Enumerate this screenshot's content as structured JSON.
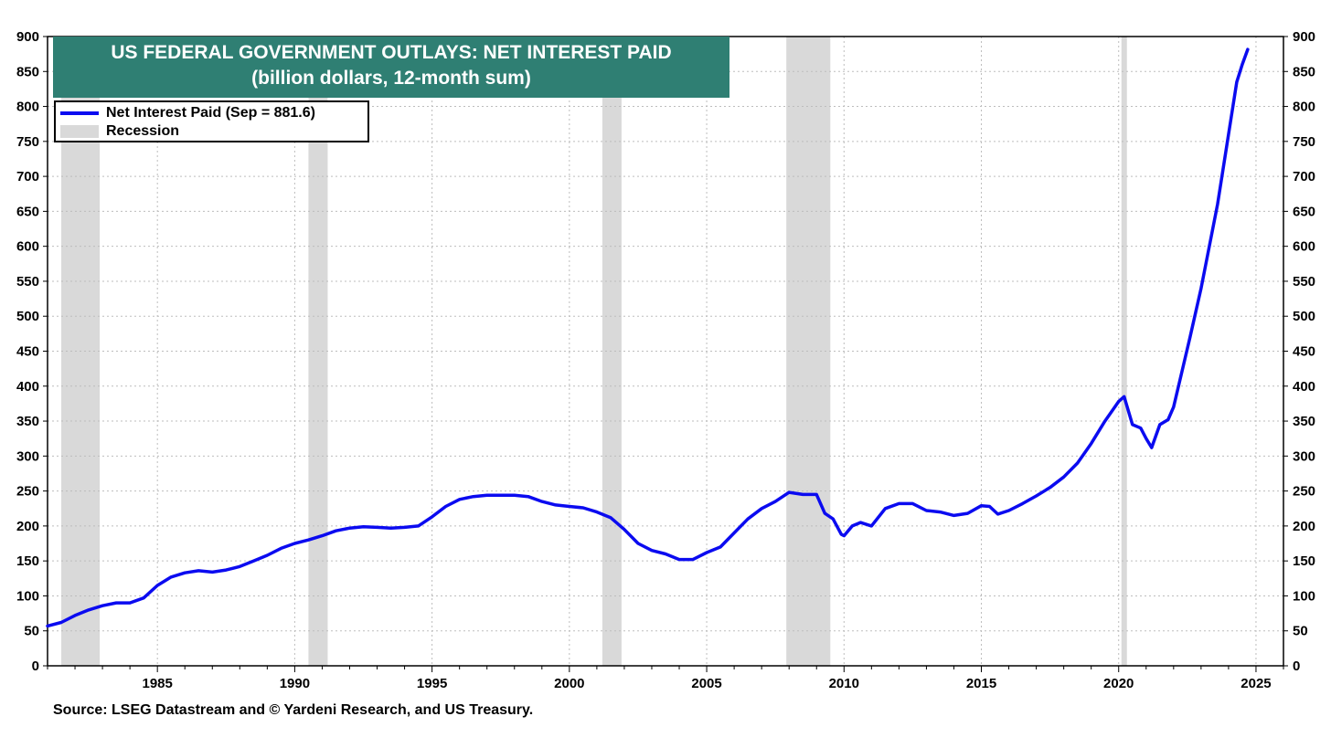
{
  "title": {
    "line1": "US FEDERAL GOVERNMENT OUTLAYS: NET INTEREST PAID",
    "line2": "(billion dollars, 12-month sum)"
  },
  "legend": {
    "series_label": "Net Interest Paid (Sep = 881.6)",
    "recession_label": "Recession"
  },
  "source": "Source: LSEG Datastream and © Yardeni Research, and US Treasury.",
  "colors": {
    "title_bg": "#2f7f73",
    "series": "#0b0bf0",
    "recession": "#d9d9d9",
    "grid": "#bdbdbd"
  },
  "chart_data": {
    "type": "line",
    "title": "US FEDERAL GOVERNMENT OUTLAYS: NET INTEREST PAID",
    "subtitle": "(billion dollars, 12-month sum)",
    "xlabel": "",
    "ylabel": "",
    "xlim": [
      1981.0,
      2026.0
    ],
    "ylim": [
      0,
      900
    ],
    "x_ticks": [
      1985,
      1990,
      1995,
      2000,
      2005,
      2010,
      2015,
      2020,
      2025
    ],
    "y_ticks": [
      0,
      50,
      100,
      150,
      200,
      250,
      300,
      350,
      400,
      450,
      500,
      550,
      600,
      650,
      700,
      750,
      800,
      850,
      900
    ],
    "y_axis_both_sides": true,
    "grid": true,
    "legend_position": "top-left",
    "recessions": [
      [
        1981.5,
        1982.9
      ],
      [
        1990.5,
        1991.2
      ],
      [
        2001.2,
        2001.9
      ],
      [
        2007.9,
        2009.5
      ],
      [
        2020.1,
        2020.3
      ]
    ],
    "series": [
      {
        "name": "Net Interest Paid (Sep = 881.6)",
        "x": [
          1981.0,
          1981.5,
          1982.0,
          1982.5,
          1983.0,
          1983.5,
          1984.0,
          1984.5,
          1985.0,
          1985.5,
          1986.0,
          1986.5,
          1987.0,
          1987.5,
          1988.0,
          1988.5,
          1989.0,
          1989.5,
          1990.0,
          1990.5,
          1991.0,
          1991.5,
          1992.0,
          1992.5,
          1993.0,
          1993.5,
          1994.0,
          1994.5,
          1995.0,
          1995.5,
          1996.0,
          1996.5,
          1997.0,
          1997.5,
          1998.0,
          1998.5,
          1999.0,
          1999.5,
          2000.0,
          2000.5,
          2001.0,
          2001.5,
          2002.0,
          2002.5,
          2003.0,
          2003.5,
          2004.0,
          2004.5,
          2005.0,
          2005.5,
          2006.0,
          2006.5,
          2007.0,
          2007.5,
          2008.0,
          2008.5,
          2009.0,
          2009.3,
          2009.6,
          2009.9,
          2010.0,
          2010.3,
          2010.6,
          2011.0,
          2011.5,
          2012.0,
          2012.5,
          2013.0,
          2013.5,
          2014.0,
          2014.5,
          2015.0,
          2015.3,
          2015.6,
          2016.0,
          2016.5,
          2017.0,
          2017.5,
          2018.0,
          2018.5,
          2019.0,
          2019.5,
          2020.0,
          2020.2,
          2020.5,
          2020.8,
          2021.0,
          2021.2,
          2021.5,
          2021.8,
          2022.0,
          2022.3,
          2022.6,
          2023.0,
          2023.3,
          2023.6,
          2024.0,
          2024.3,
          2024.5,
          2024.7
        ],
        "values": [
          57,
          62,
          72,
          80,
          86,
          90,
          90,
          97,
          115,
          127,
          133,
          136,
          134,
          137,
          142,
          150,
          158,
          168,
          175,
          180,
          186,
          193,
          197,
          199,
          198,
          197,
          198,
          200,
          213,
          228,
          238,
          242,
          244,
          244,
          244,
          242,
          235,
          230,
          228,
          226,
          220,
          212,
          195,
          175,
          165,
          160,
          152,
          152,
          162,
          170,
          190,
          210,
          225,
          235,
          248,
          245,
          245,
          218,
          210,
          188,
          186,
          200,
          205,
          200,
          225,
          232,
          232,
          222,
          220,
          215,
          218,
          229,
          228,
          217,
          222,
          232,
          243,
          255,
          270,
          290,
          318,
          350,
          378,
          385,
          345,
          340,
          325,
          312,
          345,
          352,
          370,
          420,
          470,
          540,
          600,
          660,
          760,
          835,
          860,
          881.6
        ]
      }
    ]
  }
}
